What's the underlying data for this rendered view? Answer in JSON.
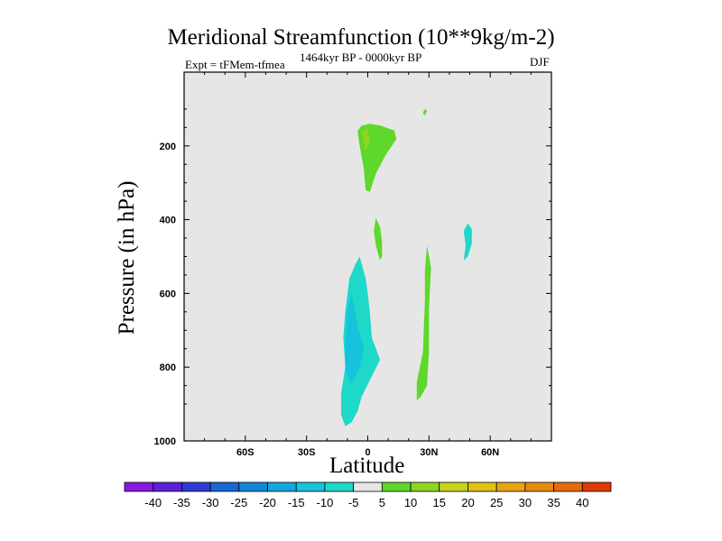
{
  "chart_data": {
    "type": "heatmap",
    "title": "Meridional Streamfunction (10**9kg/m-2)",
    "subtitle_left": "Expt = tFMem-tfmea",
    "subtitle_center": "1464kyr BP - 0000kyr BP",
    "subtitle_right": "DJF",
    "xlabel": "Latitude",
    "ylabel": "Pressure (in hPa)",
    "xlim": [
      -90,
      90
    ],
    "ylim": [
      0,
      1000
    ],
    "x_ticks": [
      {
        "value": -60,
        "label": "60S"
      },
      {
        "value": -30,
        "label": "30S"
      },
      {
        "value": 0,
        "label": "0"
      },
      {
        "value": 30,
        "label": "30N"
      },
      {
        "value": 60,
        "label": "60N"
      }
    ],
    "y_ticks": [
      {
        "value": 200,
        "label": "200"
      },
      {
        "value": 400,
        "label": "400"
      },
      {
        "value": 600,
        "label": "600"
      },
      {
        "value": 800,
        "label": "800"
      },
      {
        "value": 1000,
        "label": "1000"
      }
    ],
    "background_color": "#e6e6e6",
    "colorbar": {
      "labels": [
        "-40",
        "-35",
        "-30",
        "-25",
        "-20",
        "-15",
        "-10",
        "-5",
        "5",
        "10",
        "15",
        "20",
        "25",
        "30",
        "35",
        "40"
      ],
      "colors": [
        "#8a18de",
        "#5c22d8",
        "#2e3cd2",
        "#1c66d6",
        "#1486d8",
        "#14a6dc",
        "#16c2de",
        "#1ed8c8",
        "#e6e6e6",
        "#5ed82a",
        "#90d424",
        "#c8d41e",
        "#e0c218",
        "#e6a614",
        "#e68a10",
        "#e46a0c",
        "#e03a08"
      ]
    },
    "regions": [
      {
        "name": "upper-tropical-positive-lobe",
        "level": "5 to 10",
        "color": "#5ed82a",
        "points": [
          [
            -3,
            145
          ],
          [
            1,
            140
          ],
          [
            6,
            145
          ],
          [
            13,
            158
          ],
          [
            14,
            182
          ],
          [
            9,
            222
          ],
          [
            4,
            275
          ],
          [
            1,
            325
          ],
          [
            -1,
            320
          ],
          [
            -2,
            260
          ],
          [
            -4,
            200
          ],
          [
            -5,
            160
          ]
        ]
      },
      {
        "name": "upper-tropical-positive-core",
        "level": "10 to 15",
        "color": "#90d424",
        "points": [
          [
            -3,
            160
          ],
          [
            0,
            153
          ],
          [
            1,
            185
          ],
          [
            -1,
            215
          ],
          [
            -2,
            190
          ]
        ]
      },
      {
        "name": "midlevel-positive-sliver",
        "level": "5 to 10",
        "color": "#5ed82a",
        "points": [
          [
            4,
            395
          ],
          [
            6,
            420
          ],
          [
            7,
            460
          ],
          [
            7,
            500
          ],
          [
            6,
            510
          ],
          [
            4,
            470
          ],
          [
            3,
            430
          ]
        ]
      },
      {
        "name": "upper-small-positive-blip",
        "level": "5 to 10",
        "color": "#5ed82a",
        "points": [
          [
            28,
            100
          ],
          [
            29,
            105
          ],
          [
            28,
            118
          ],
          [
            27,
            110
          ]
        ]
      },
      {
        "name": "northern-positive-strip",
        "level": "5 to 10",
        "color": "#5ed82a",
        "points": [
          [
            29,
            470
          ],
          [
            31,
            530
          ],
          [
            30,
            640
          ],
          [
            30,
            760
          ],
          [
            29,
            850
          ],
          [
            26,
            880
          ],
          [
            24,
            890
          ],
          [
            24,
            840
          ],
          [
            27,
            760
          ],
          [
            28,
            620
          ],
          [
            28,
            540
          ]
        ]
      },
      {
        "name": "northern-negative-sliver",
        "level": "-10 to -5",
        "color": "#1ed8c8",
        "points": [
          [
            49,
            410
          ],
          [
            51,
            425
          ],
          [
            51,
            465
          ],
          [
            49,
            500
          ],
          [
            47,
            510
          ],
          [
            48,
            470
          ],
          [
            47,
            430
          ]
        ]
      },
      {
        "name": "lower-tropical-negative-cell",
        "level": "-10 to -5",
        "color": "#1ed8c8",
        "points": [
          [
            -4,
            500
          ],
          [
            -1,
            560
          ],
          [
            0,
            600
          ],
          [
            1,
            650
          ],
          [
            2,
            720
          ],
          [
            6,
            780
          ],
          [
            2,
            825
          ],
          [
            -3,
            880
          ],
          [
            -5,
            920
          ],
          [
            -8,
            950
          ],
          [
            -11,
            960
          ],
          [
            -13,
            930
          ],
          [
            -13,
            870
          ],
          [
            -11,
            800
          ],
          [
            -12,
            720
          ],
          [
            -11,
            650
          ],
          [
            -9,
            560
          ],
          [
            -6,
            520
          ]
        ]
      },
      {
        "name": "lower-tropical-negative-core",
        "level": "-15 to -10",
        "color": "#16c2de",
        "points": [
          [
            -8,
            600
          ],
          [
            -5,
            690
          ],
          [
            -2,
            745
          ],
          [
            -4,
            800
          ],
          [
            -8,
            845
          ],
          [
            -11,
            810
          ],
          [
            -11,
            740
          ],
          [
            -10,
            650
          ]
        ]
      }
    ]
  }
}
